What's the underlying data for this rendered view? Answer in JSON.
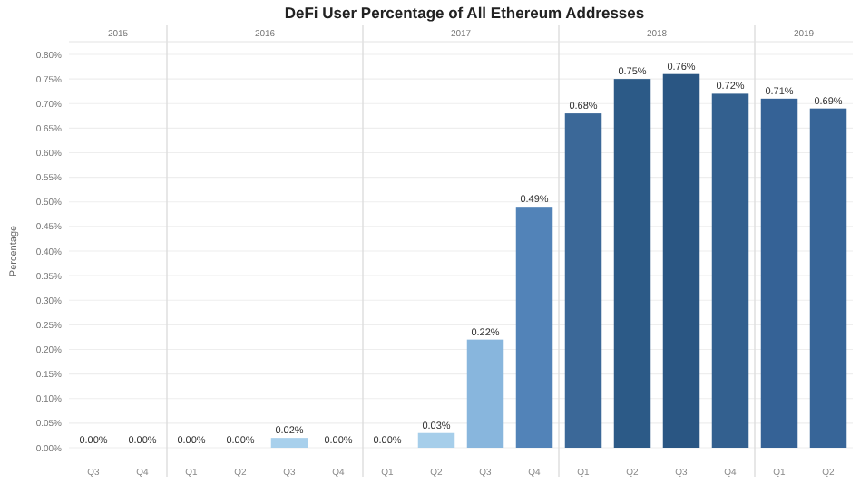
{
  "chart_data": {
    "type": "bar",
    "title": "DeFi User Percentage of All Ethereum Addresses",
    "ylabel": "Percentage",
    "categories": [
      "Q3",
      "Q4",
      "Q1",
      "Q2",
      "Q3",
      "Q4",
      "Q1",
      "Q2",
      "Q3",
      "Q4",
      "Q1",
      "Q2",
      "Q3",
      "Q4",
      "Q1",
      "Q2"
    ],
    "values": [
      0,
      0,
      0,
      0,
      0.02,
      0,
      0,
      0.03,
      0.22,
      0.49,
      0.68,
      0.75,
      0.76,
      0.72,
      0.71,
      0.69
    ],
    "value_labels": [
      "0.00%",
      "0.00%",
      "0.00%",
      "0.00%",
      "0.02%",
      "0.00%",
      "0.00%",
      "0.03%",
      "0.22%",
      "0.49%",
      "0.68%",
      "0.75%",
      "0.76%",
      "0.72%",
      "0.71%",
      "0.69%"
    ],
    "colors": [
      "#b3d5ee",
      "#b3d5ee",
      "#b3d5ee",
      "#b3d5ee",
      "#a8d0ec",
      "#b3d5ee",
      "#b3d5ee",
      "#a6ceea",
      "#88b6dd",
      "#5283b8",
      "#3b6898",
      "#2c5a87",
      "#2a5683",
      "#33608f",
      "#356296",
      "#376598"
    ],
    "annotations": [
      "2015",
      "2016",
      "2017",
      "2018",
      "2019"
    ],
    "ylim": [
      0,
      0.8
    ],
    "yticks": [
      {
        "value": 0,
        "label": "0.00%"
      },
      {
        "value": 0.05,
        "label": "0.05%"
      },
      {
        "value": 0.1,
        "label": "0.10%"
      },
      {
        "value": 0.15,
        "label": "0.15%"
      },
      {
        "value": 0.2,
        "label": "0.20%"
      },
      {
        "value": 0.25,
        "label": "0.25%"
      },
      {
        "value": 0.3,
        "label": "0.30%"
      },
      {
        "value": 0.35,
        "label": "0.35%"
      },
      {
        "value": 0.4,
        "label": "0.40%"
      },
      {
        "value": 0.45,
        "label": "0.45%"
      },
      {
        "value": 0.5,
        "label": "0.50%"
      },
      {
        "value": 0.55,
        "label": "0.55%"
      },
      {
        "value": 0.6,
        "label": "0.60%"
      },
      {
        "value": 0.65,
        "label": "0.65%"
      },
      {
        "value": 0.7,
        "label": "0.70%"
      },
      {
        "value": 0.75,
        "label": "0.75%"
      },
      {
        "value": 0.8,
        "label": "0.80%"
      }
    ],
    "grid": "y"
  }
}
